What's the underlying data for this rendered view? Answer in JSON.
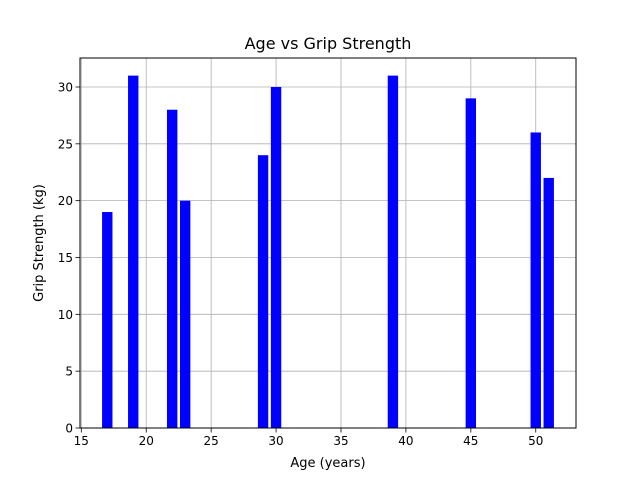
{
  "chart_data": {
    "type": "bar",
    "title": "Age vs Grip Strength",
    "xlabel": "Age (years)",
    "ylabel": "Grip Strength (kg)",
    "x": [
      17,
      19,
      22,
      23,
      29,
      30,
      39,
      45,
      50,
      51
    ],
    "values": [
      19,
      31,
      28,
      20,
      24,
      30,
      31,
      29,
      26,
      22
    ],
    "bar_width_units": 0.8,
    "xlim": [
      14.9,
      53.1
    ],
    "ylim": [
      0,
      32.55
    ],
    "xticks": [
      15,
      20,
      25,
      30,
      35,
      40,
      45,
      50
    ],
    "yticks": [
      0,
      5,
      10,
      15,
      20,
      25,
      30
    ],
    "grid": true,
    "bar_color": "#0000ff"
  }
}
